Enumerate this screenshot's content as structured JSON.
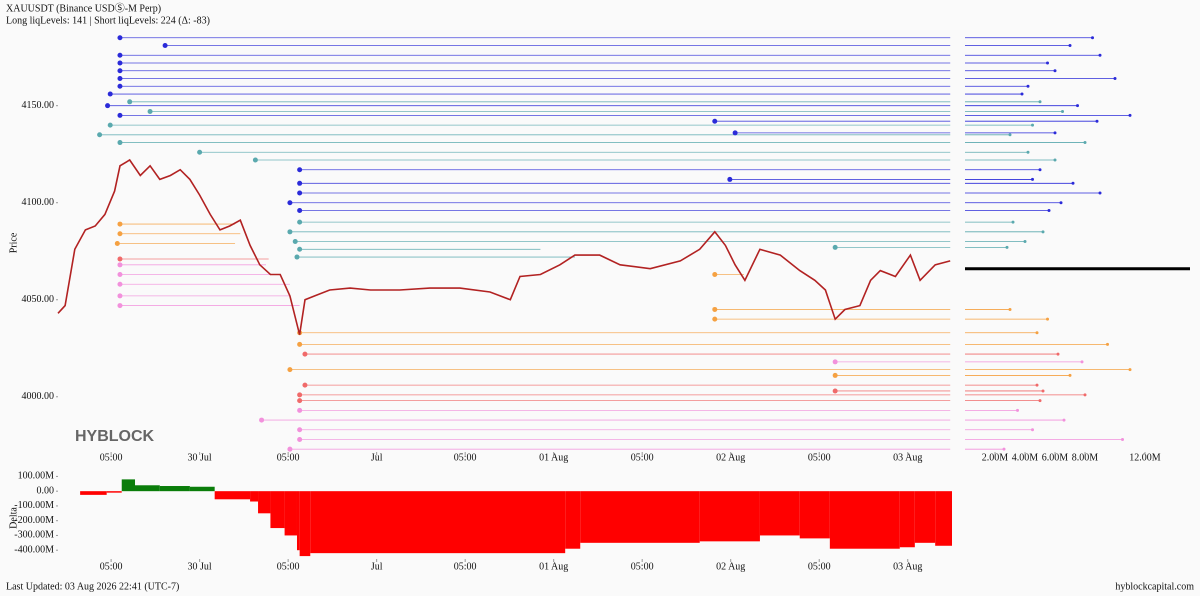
{
  "chart_data": [
    {
      "type": "line",
      "title": "XAUUSDT (Binance USDⓈ-M Perp)",
      "subtitle": "Long liqLevels: 141 | Short liqLevels: 224 (Δ: -83)",
      "y_label": "Price",
      "watermark": "HYBLOCK",
      "color": "#b22222",
      "x": [
        0.4,
        0.48,
        0.59,
        0.71,
        0.82,
        0.93,
        1.04,
        1.1,
        1.21,
        1.33,
        1.44,
        1.55,
        1.67,
        1.78,
        1.89,
        2.0,
        2.12,
        2.23,
        2.34,
        2.46,
        2.57,
        2.68,
        2.8,
        2.91,
        3.02,
        3.13,
        3.19,
        3.3,
        3.47,
        3.7,
        3.93,
        4.26,
        4.6,
        4.94,
        5.28,
        5.51,
        5.62,
        5.85,
        6.07,
        6.24,
        6.52,
        6.75,
        7.09,
        7.43,
        7.65,
        7.82,
        7.94,
        8.05,
        8.16,
        8.33,
        8.56,
        8.78,
        8.95,
        9.07,
        9.18,
        9.29,
        9.46,
        9.58,
        9.69,
        9.86,
        10.03,
        10.14,
        10.31,
        10.48
      ],
      "values": [
        4043,
        4047,
        4076,
        4086,
        4088,
        4094,
        4106,
        4119,
        4122,
        4114,
        4119,
        4112,
        4114,
        4117,
        4112,
        4104,
        4094,
        4086,
        4088,
        4091,
        4078,
        4068,
        4063,
        4063,
        4052,
        4032,
        4050,
        4052,
        4055,
        4056,
        4055,
        4055,
        4056,
        4056,
        4054,
        4050,
        4062,
        4063,
        4068,
        4073,
        4073,
        4068,
        4066,
        4070,
        4076,
        4085,
        4078,
        4068,
        4060,
        4076,
        4073,
        4065,
        4060,
        4055,
        4040,
        4045,
        4047,
        4060,
        4065,
        4062,
        4073,
        4060,
        4068,
        4070
      ],
      "xlim": [
        0.4,
        10.5
      ],
      "xticks": [
        {
          "value": 1,
          "label": "05:00"
        },
        {
          "value": 2,
          "label": "30 Jul"
        },
        {
          "value": 3,
          "label": "05:00"
        },
        {
          "value": 4,
          "label": "Jul"
        },
        {
          "value": 5,
          "label": "05:00"
        },
        {
          "value": 6,
          "label": "01 Aug"
        },
        {
          "value": 7,
          "label": "05:00"
        },
        {
          "value": 8,
          "label": "02 Aug"
        },
        {
          "value": 9,
          "label": "05:00"
        },
        {
          "value": 10,
          "label": "03 Aug"
        }
      ],
      "ylim": [
        3970,
        4189
      ],
      "yticks": [
        {
          "value": 4000,
          "label": "4000.00"
        },
        {
          "value": 4050,
          "label": "4050.00"
        },
        {
          "value": 4100,
          "label": "4100.00"
        },
        {
          "value": 4150,
          "label": "4150.00"
        }
      ],
      "levels": [
        {
          "price": 4185,
          "start": 1.1,
          "end": 10.48,
          "size": 8500000,
          "color": "#2b2bd9"
        },
        {
          "price": 4181,
          "start": 1.61,
          "end": 10.48,
          "size": 7000000,
          "color": "#2b2bd9"
        },
        {
          "price": 4176,
          "start": 1.1,
          "end": 10.48,
          "size": 9000000,
          "color": "#2b2bd9"
        },
        {
          "price": 4172,
          "start": 1.1,
          "end": 10.48,
          "size": 5500000,
          "color": "#2b2bd9"
        },
        {
          "price": 4168,
          "start": 1.1,
          "end": 10.48,
          "size": 6000000,
          "color": "#2b2bd9"
        },
        {
          "price": 4164,
          "start": 1.1,
          "end": 10.48,
          "size": 10000000,
          "color": "#2b2bd9"
        },
        {
          "price": 4160,
          "start": 1.1,
          "end": 10.48,
          "size": 4200000,
          "color": "#2b2bd9"
        },
        {
          "price": 4156,
          "start": 0.99,
          "end": 10.48,
          "size": 3800000,
          "color": "#2b2bd9"
        },
        {
          "price": 4150,
          "start": 0.96,
          "end": 10.48,
          "size": 7500000,
          "color": "#2b2bd9"
        },
        {
          "price": 4145,
          "start": 1.1,
          "end": 10.48,
          "size": 11000000,
          "color": "#2b2bd9"
        },
        {
          "price": 4152,
          "start": 1.21,
          "end": 10.48,
          "size": 5000000,
          "color": "#5aa9ae"
        },
        {
          "price": 4147,
          "start": 1.44,
          "end": 10.48,
          "size": 6500000,
          "color": "#5aa9ae"
        },
        {
          "price": 4140,
          "start": 0.99,
          "end": 10.48,
          "size": 4500000,
          "color": "#5aa9ae"
        },
        {
          "price": 4135,
          "start": 0.87,
          "end": 10.48,
          "size": 3000000,
          "color": "#5aa9ae"
        },
        {
          "price": 4131,
          "start": 1.1,
          "end": 10.48,
          "size": 8000000,
          "color": "#5aa9ae"
        },
        {
          "price": 4126,
          "start": 2.0,
          "end": 10.48,
          "size": 4200000,
          "color": "#5aa9ae"
        },
        {
          "price": 4122,
          "start": 2.63,
          "end": 10.48,
          "size": 6000000,
          "color": "#5aa9ae"
        },
        {
          "price": 4142,
          "start": 7.82,
          "end": 10.48,
          "size": 8800000,
          "color": "#2b2bd9"
        },
        {
          "price": 4136,
          "start": 8.05,
          "end": 10.48,
          "size": 6000000,
          "color": "#2b2bd9"
        },
        {
          "price": 4117,
          "start": 3.13,
          "end": 10.48,
          "size": 5000000,
          "color": "#2b2bd9"
        },
        {
          "price": 4112,
          "start": 7.99,
          "end": 10.48,
          "size": 4500000,
          "color": "#2b2bd9"
        },
        {
          "price": 4110,
          "start": 3.13,
          "end": 10.48,
          "size": 7200000,
          "color": "#2b2bd9"
        },
        {
          "price": 4105,
          "start": 3.13,
          "end": 10.48,
          "size": 9000000,
          "color": "#2b2bd9"
        },
        {
          "price": 4100,
          "start": 3.02,
          "end": 10.48,
          "size": 6400000,
          "color": "#2b2bd9"
        },
        {
          "price": 4096,
          "start": 3.13,
          "end": 10.48,
          "size": 5600000,
          "color": "#2b2bd9"
        },
        {
          "price": 4090,
          "start": 3.13,
          "end": 10.48,
          "size": 3200000,
          "color": "#5aa9ae"
        },
        {
          "price": 4085,
          "start": 3.02,
          "end": 10.48,
          "size": 5200000,
          "color": "#5aa9ae"
        },
        {
          "price": 4080,
          "start": 3.08,
          "end": 10.48,
          "size": 4000000,
          "color": "#5aa9ae"
        },
        {
          "price": 4077,
          "start": 9.18,
          "end": 10.48,
          "size": 2800000,
          "color": "#5aa9ae"
        },
        {
          "price": 4076,
          "start": 3.13,
          "end": 5.85,
          "size": null,
          "color": "#5aa9ae"
        },
        {
          "price": 4072,
          "start": 3.1,
          "end": 6.24,
          "size": null,
          "color": "#5aa9ae"
        },
        {
          "price": 4089,
          "start": 1.1,
          "end": 2.4,
          "size": null,
          "color": "#f5a142"
        },
        {
          "price": 4084,
          "start": 1.1,
          "end": 2.46,
          "size": null,
          "color": "#f5a142"
        },
        {
          "price": 4079,
          "start": 1.07,
          "end": 2.4,
          "size": null,
          "color": "#f5a142"
        },
        {
          "price": 4071,
          "start": 1.1,
          "end": 2.78,
          "size": null,
          "color": "#f06a6a"
        },
        {
          "price": 4068,
          "start": 1.1,
          "end": 2.75,
          "size": null,
          "color": "#f291dc"
        },
        {
          "price": 4063,
          "start": 1.1,
          "end": 2.9,
          "size": null,
          "color": "#f291dc"
        },
        {
          "price": 4058,
          "start": 1.1,
          "end": 3.02,
          "size": null,
          "color": "#f291dc"
        },
        {
          "price": 4052,
          "start": 1.1,
          "end": 3.02,
          "size": null,
          "color": "#f291dc"
        },
        {
          "price": 4047,
          "start": 1.1,
          "end": 3.13,
          "size": null,
          "color": "#f291dc"
        },
        {
          "price": 4063,
          "start": 7.82,
          "end": 8.15,
          "size": null,
          "color": "#f5a142"
        },
        {
          "price": 4045,
          "start": 7.82,
          "end": 10.48,
          "size": 3000000,
          "color": "#f5a142"
        },
        {
          "price": 4040,
          "start": 7.82,
          "end": 10.48,
          "size": 5500000,
          "color": "#f5a142"
        },
        {
          "price": 4033,
          "start": 3.13,
          "end": 10.48,
          "size": 4800000,
          "color": "#f5a142"
        },
        {
          "price": 4027,
          "start": 3.13,
          "end": 10.48,
          "size": 9500000,
          "color": "#f5a142"
        },
        {
          "price": 4022,
          "start": 3.19,
          "end": 10.48,
          "size": 6200000,
          "color": "#f06a6a"
        },
        {
          "price": 4018,
          "start": 9.18,
          "end": 10.48,
          "size": 7800000,
          "color": "#f291dc"
        },
        {
          "price": 4014,
          "start": 3.02,
          "end": 10.48,
          "size": 11000000,
          "color": "#f5a142"
        },
        {
          "price": 4011,
          "start": 9.18,
          "end": 10.48,
          "size": 7000000,
          "color": "#f5a142"
        },
        {
          "price": 4006,
          "start": 3.19,
          "end": 10.48,
          "size": 4800000,
          "color": "#f06a6a"
        },
        {
          "price": 4003,
          "start": 9.18,
          "end": 10.48,
          "size": 5200000,
          "color": "#f06a6a"
        },
        {
          "price": 4001,
          "start": 3.13,
          "end": 10.48,
          "size": 8000000,
          "color": "#f06a6a"
        },
        {
          "price": 3998,
          "start": 3.13,
          "end": 10.48,
          "size": 5000000,
          "color": "#f06a6a"
        },
        {
          "price": 3993,
          "start": 3.13,
          "end": 10.48,
          "size": 3500000,
          "color": "#f291dc"
        },
        {
          "price": 3988,
          "start": 2.7,
          "end": 10.48,
          "size": 6600000,
          "color": "#f291dc"
        },
        {
          "price": 3983,
          "start": 3.13,
          "end": 10.48,
          "size": 4500000,
          "color": "#f291dc"
        },
        {
          "price": 3978,
          "start": 3.13,
          "end": 10.48,
          "size": 10500000,
          "color": "#f291dc"
        },
        {
          "price": 3973,
          "start": 3.02,
          "end": 10.48,
          "size": 2600000,
          "color": "#f291dc"
        }
      ]
    },
    {
      "type": "step",
      "y_label": "Delta",
      "positive_color": "#0a7d0a",
      "negative_color": "#ff0000",
      "x": [
        0.4,
        0.65,
        0.95,
        1.12,
        1.27,
        1.55,
        1.89,
        2.17,
        2.57,
        2.66,
        2.8,
        2.96,
        3.1,
        3.13,
        3.25,
        6.13,
        6.3,
        7.65,
        8.33,
        8.78,
        9.12,
        9.91,
        10.08,
        10.31
      ],
      "values": [
        0,
        -25000000,
        -10000000,
        80000000,
        40000000,
        35000000,
        30000000,
        -55000000,
        -70000000,
        -150000000,
        -250000000,
        -300000000,
        -400000000,
        -440000000,
        -420000000,
        -390000000,
        -350000000,
        -340000000,
        -300000000,
        -320000000,
        -390000000,
        -380000000,
        -350000000,
        -370000000
      ],
      "xlim": [
        0.4,
        10.5
      ],
      "xticks": [
        {
          "value": 1,
          "label": "05:00"
        },
        {
          "value": 2,
          "label": "30 Jul"
        },
        {
          "value": 3,
          "label": "05:00"
        },
        {
          "value": 4,
          "label": "Jul"
        },
        {
          "value": 5,
          "label": "05:00"
        },
        {
          "value": 6,
          "label": "01 Aug"
        },
        {
          "value": 7,
          "label": "05:00"
        },
        {
          "value": 8,
          "label": "02 Aug"
        },
        {
          "value": 9,
          "label": "05:00"
        },
        {
          "value": 10,
          "label": "03 Aug"
        }
      ],
      "ylim": [
        -480000000,
        130000000
      ],
      "yticks": [
        {
          "value": 100000000,
          "label": "100.00M"
        },
        {
          "value": 0,
          "label": "0.00"
        },
        {
          "value": -100000000,
          "label": "-100.00M"
        },
        {
          "value": -200000000,
          "label": "-200.00M"
        },
        {
          "value": -300000000,
          "label": "-300.00M"
        },
        {
          "value": -400000000,
          "label": "-400.00M"
        }
      ]
    },
    {
      "type": "hbar",
      "xlim": [
        0,
        15000000
      ],
      "xticks": [
        {
          "value": 2000000,
          "label": "2.00M"
        },
        {
          "value": 4000000,
          "label": "4.00M"
        },
        {
          "value": 6000000,
          "label": "6.00M"
        },
        {
          "value": 8000000,
          "label": "8.00M"
        },
        {
          "value": 12000000,
          "label": "12.00M"
        }
      ],
      "last_price": 4066,
      "last_price_color": "#000000"
    }
  ],
  "footer": {
    "updated": "Last Updated: 03 Aug 2026 22:41 (UTC-7)",
    "site": "hyblockcapital.com"
  }
}
